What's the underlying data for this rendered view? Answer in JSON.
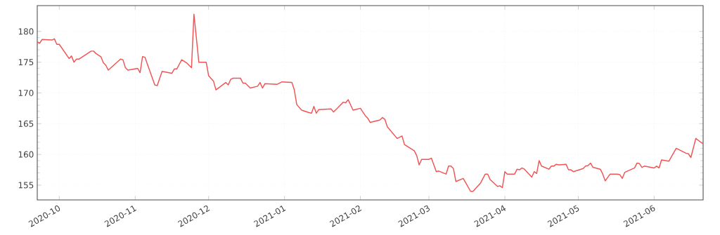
{
  "chart_data": {
    "type": "line",
    "color": "#f05454",
    "grid": true,
    "xlim": [
      "2020-09-22",
      "2021-06-21"
    ],
    "ylim": [
      152.6,
      184.2
    ],
    "xticks": [
      "2020-10",
      "2020-11",
      "2020-12",
      "2021-01",
      "2021-02",
      "2021-03",
      "2021-04",
      "2021-05",
      "2021-06"
    ],
    "yticks": [
      155,
      160,
      165,
      170,
      175,
      180
    ],
    "x": [
      "2020-09-22",
      "2020-09-23",
      "2020-09-24",
      "2020-09-28",
      "2020-09-29",
      "2020-09-30",
      "2020-10-01",
      "2020-10-05",
      "2020-10-06",
      "2020-10-07",
      "2020-10-08",
      "2020-10-09",
      "2020-10-14",
      "2020-10-15",
      "2020-10-16",
      "2020-10-18",
      "2020-10-19",
      "2020-10-20",
      "2020-10-21",
      "2020-10-26",
      "2020-10-27",
      "2020-10-28",
      "2020-10-29",
      "2020-11-02",
      "2020-11-03",
      "2020-11-04",
      "2020-11-05",
      "2020-11-09",
      "2020-11-10",
      "2020-11-12",
      "2020-11-16",
      "2020-11-17",
      "2020-11-18",
      "2020-11-20",
      "2020-11-22",
      "2020-11-23",
      "2020-11-24",
      "2020-11-25",
      "2020-11-27",
      "2020-11-30",
      "2020-12-01",
      "2020-12-03",
      "2020-12-04",
      "2020-12-08",
      "2020-12-09",
      "2020-12-10",
      "2020-12-11",
      "2020-12-14",
      "2020-12-15",
      "2020-12-16",
      "2020-12-18",
      "2020-12-21",
      "2020-12-22",
      "2020-12-23",
      "2020-12-24",
      "2020-12-29",
      "2020-12-31",
      "2021-01-04",
      "2021-01-05",
      "2021-01-06",
      "2021-01-08",
      "2021-01-11",
      "2021-01-12",
      "2021-01-13",
      "2021-01-14",
      "2021-01-15",
      "2021-01-20",
      "2021-01-21",
      "2021-01-23",
      "2021-01-25",
      "2021-01-26",
      "2021-01-27",
      "2021-01-29",
      "2021-02-01",
      "2021-02-03",
      "2021-02-04",
      "2021-02-05",
      "2021-02-09",
      "2021-02-10",
      "2021-02-11",
      "2021-02-12",
      "2021-02-16",
      "2021-02-18",
      "2021-02-19",
      "2021-02-23",
      "2021-02-24",
      "2021-02-25",
      "2021-02-26",
      "2021-03-01",
      "2021-03-02",
      "2021-03-04",
      "2021-03-05",
      "2021-03-08",
      "2021-03-09",
      "2021-03-10",
      "2021-03-11",
      "2021-03-12",
      "2021-03-15",
      "2021-03-16",
      "2021-03-18",
      "2021-03-19",
      "2021-03-22",
      "2021-03-24",
      "2021-03-25",
      "2021-03-26",
      "2021-03-29",
      "2021-03-30",
      "2021-03-31",
      "2021-04-01",
      "2021-04-02",
      "2021-04-05",
      "2021-04-06",
      "2021-04-07",
      "2021-04-08",
      "2021-04-09",
      "2021-04-12",
      "2021-04-13",
      "2021-04-14",
      "2021-04-15",
      "2021-04-16",
      "2021-04-19",
      "2021-04-20",
      "2021-04-21",
      "2021-04-22",
      "2021-04-23",
      "2021-04-26",
      "2021-04-27",
      "2021-04-28",
      "2021-04-29",
      "2021-05-03",
      "2021-05-04",
      "2021-05-05",
      "2021-05-06",
      "2021-05-07",
      "2021-05-10",
      "2021-05-11",
      "2021-05-12",
      "2021-05-14",
      "2021-05-17",
      "2021-05-18",
      "2021-05-19",
      "2021-05-20",
      "2021-05-24",
      "2021-05-25",
      "2021-05-26",
      "2021-05-27",
      "2021-05-28",
      "2021-06-01",
      "2021-06-02",
      "2021-06-03",
      "2021-06-04",
      "2021-06-07",
      "2021-06-10",
      "2021-06-14",
      "2021-06-15",
      "2021-06-16",
      "2021-06-18",
      "2021-06-21"
    ],
    "values": [
      178.3,
      178.1,
      178.7,
      178.6,
      178.8,
      177.9,
      177.9,
      175.6,
      176.0,
      175.0,
      175.5,
      175.5,
      176.8,
      176.8,
      176.4,
      175.9,
      174.9,
      174.5,
      173.7,
      175.5,
      175.4,
      174.1,
      173.7,
      174.0,
      173.3,
      175.9,
      175.8,
      171.3,
      171.2,
      173.5,
      173.2,
      173.9,
      173.9,
      175.4,
      174.9,
      174.5,
      174.1,
      182.8,
      175.0,
      175.0,
      172.8,
      171.9,
      170.5,
      171.7,
      171.3,
      172.2,
      172.4,
      172.4,
      171.6,
      171.6,
      170.8,
      171.1,
      171.7,
      170.8,
      171.5,
      171.4,
      171.8,
      171.7,
      170.5,
      168.1,
      167.2,
      166.8,
      166.7,
      167.8,
      166.7,
      167.3,
      167.4,
      166.9,
      167.7,
      168.5,
      168.4,
      168.9,
      167.2,
      167.5,
      166.3,
      165.9,
      165.2,
      165.6,
      166.0,
      165.7,
      164.5,
      162.6,
      163.0,
      161.6,
      160.6,
      159.8,
      158.3,
      159.2,
      159.2,
      159.4,
      157.2,
      157.3,
      156.8,
      158.1,
      158.1,
      157.7,
      155.6,
      156.1,
      155.4,
      154.0,
      154.0,
      155.3,
      156.8,
      156.8,
      155.9,
      154.8,
      154.9,
      154.6,
      157.2,
      156.8,
      156.8,
      157.6,
      157.5,
      157.8,
      157.6,
      156.3,
      157.2,
      156.9,
      159.0,
      158.1,
      157.6,
      158.1,
      158.1,
      158.4,
      158.3,
      158.4,
      157.5,
      157.5,
      157.2,
      157.7,
      158.1,
      158.2,
      158.6,
      157.9,
      157.6,
      156.8,
      155.7,
      156.8,
      156.8,
      156.7,
      156.1,
      157.1,
      157.8,
      158.6,
      158.5,
      157.9,
      158.1,
      157.8,
      158.1,
      157.8,
      159.1,
      158.9,
      161.0,
      160.2,
      160.1,
      159.5,
      162.6,
      161.7
    ]
  }
}
